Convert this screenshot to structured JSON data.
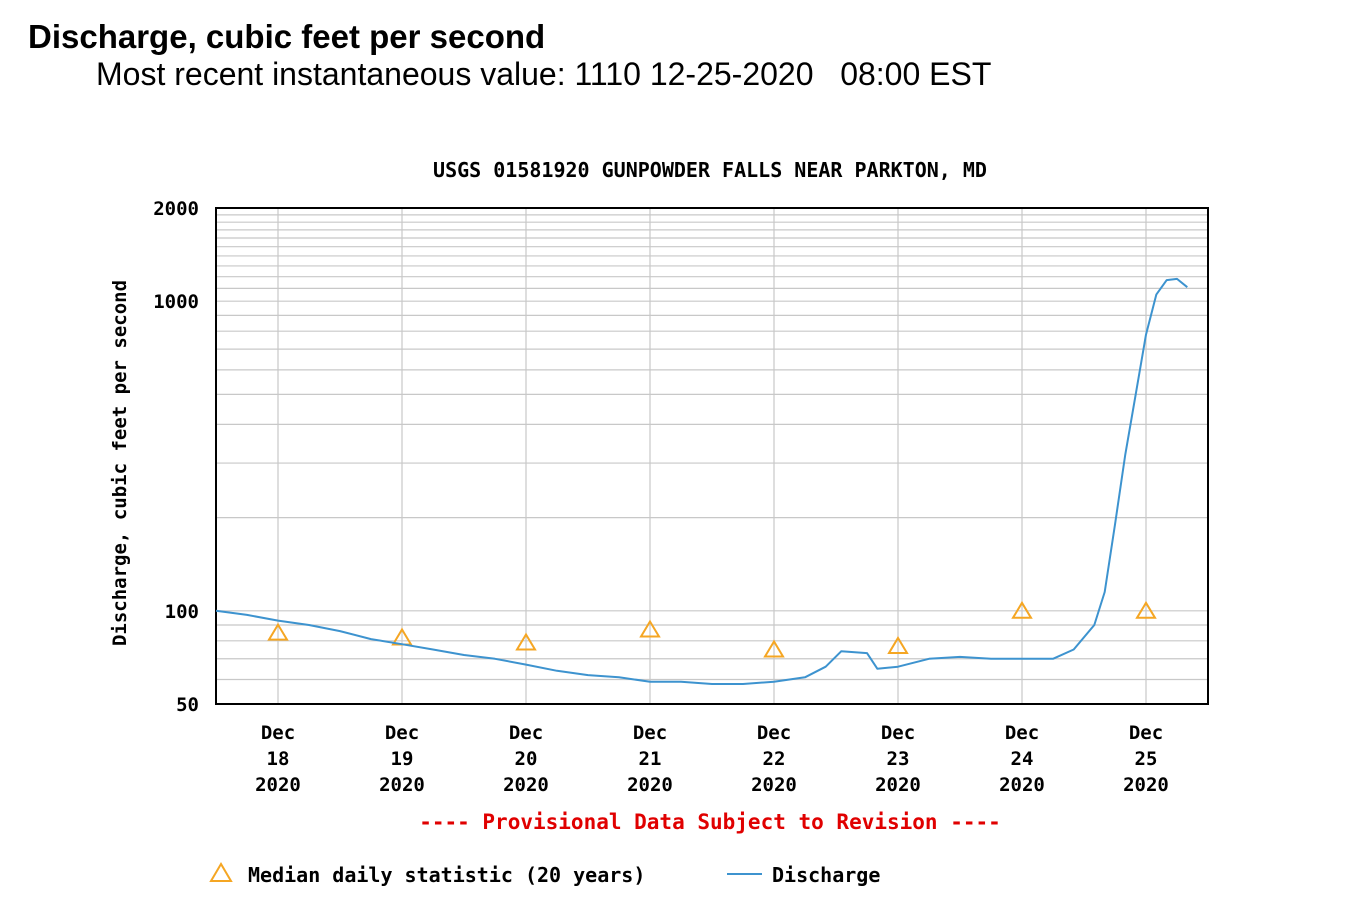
{
  "header": {
    "title": "Discharge, cubic feet per second",
    "recent_label": "Most recent instantaneous value:",
    "recent_value": "1110",
    "recent_date": "12-25-2020",
    "recent_time": "08:00 EST"
  },
  "colors": {
    "discharge_line": "#3d93cf",
    "median_marker": "#f5a623",
    "provisional_text": "#e00000",
    "grid": "#c8c8c8"
  },
  "chart_data": {
    "type": "line",
    "title": "USGS 01581920 GUNPOWDER FALLS NEAR PARKTON, MD",
    "ylabel": "Discharge, cubic feet per second",
    "xlabel": "",
    "yscale": "log",
    "ylim": [
      50,
      2000
    ],
    "xlim": [
      "2020-12-17 12:00",
      "2020-12-25 12:00"
    ],
    "yticks": [
      {
        "value": 50,
        "label": "50"
      },
      {
        "value": 100,
        "label": "100"
      },
      {
        "value": 1000,
        "label": "1000"
      },
      {
        "value": 2000,
        "label": "2000"
      }
    ],
    "xticks": [
      {
        "date": "2020-12-18",
        "lines": [
          "Dec",
          "18",
          "2020"
        ]
      },
      {
        "date": "2020-12-19",
        "lines": [
          "Dec",
          "19",
          "2020"
        ]
      },
      {
        "date": "2020-12-20",
        "lines": [
          "Dec",
          "20",
          "2020"
        ]
      },
      {
        "date": "2020-12-21",
        "lines": [
          "Dec",
          "21",
          "2020"
        ]
      },
      {
        "date": "2020-12-22",
        "lines": [
          "Dec",
          "22",
          "2020"
        ]
      },
      {
        "date": "2020-12-23",
        "lines": [
          "Dec",
          "23",
          "2020"
        ]
      },
      {
        "date": "2020-12-24",
        "lines": [
          "Dec",
          "24",
          "2020"
        ]
      },
      {
        "date": "2020-12-25",
        "lines": [
          "Dec",
          "25",
          "2020"
        ]
      }
    ],
    "grid": true,
    "provisional_note": "---- Provisional Data Subject to Revision ----",
    "legend_position": "bottom",
    "series": [
      {
        "name": "Discharge",
        "style": "line",
        "points": [
          [
            "2020-12-17 12:00",
            100
          ],
          [
            "2020-12-17 18:00",
            97
          ],
          [
            "2020-12-18 00:00",
            93
          ],
          [
            "2020-12-18 06:00",
            90
          ],
          [
            "2020-12-18 12:00",
            86
          ],
          [
            "2020-12-18 18:00",
            81
          ],
          [
            "2020-12-19 00:00",
            78
          ],
          [
            "2020-12-19 06:00",
            75
          ],
          [
            "2020-12-19 12:00",
            72
          ],
          [
            "2020-12-19 18:00",
            70
          ],
          [
            "2020-12-20 00:00",
            67
          ],
          [
            "2020-12-20 06:00",
            64
          ],
          [
            "2020-12-20 12:00",
            62
          ],
          [
            "2020-12-20 18:00",
            61
          ],
          [
            "2020-12-21 00:00",
            59
          ],
          [
            "2020-12-21 06:00",
            59
          ],
          [
            "2020-12-21 12:00",
            58
          ],
          [
            "2020-12-21 18:00",
            58
          ],
          [
            "2020-12-22 00:00",
            59
          ],
          [
            "2020-12-22 06:00",
            61
          ],
          [
            "2020-12-22 10:00",
            66
          ],
          [
            "2020-12-22 13:00",
            74
          ],
          [
            "2020-12-22 18:00",
            73
          ],
          [
            "2020-12-22 20:00",
            65
          ],
          [
            "2020-12-23 00:00",
            66
          ],
          [
            "2020-12-23 06:00",
            70
          ],
          [
            "2020-12-23 12:00",
            71
          ],
          [
            "2020-12-23 18:00",
            70
          ],
          [
            "2020-12-24 00:00",
            70
          ],
          [
            "2020-12-24 06:00",
            70
          ],
          [
            "2020-12-24 10:00",
            75
          ],
          [
            "2020-12-24 14:00",
            90
          ],
          [
            "2020-12-24 16:00",
            115
          ],
          [
            "2020-12-24 18:00",
            190
          ],
          [
            "2020-12-24 20:00",
            320
          ],
          [
            "2020-12-24 22:00",
            500
          ],
          [
            "2020-12-25 00:00",
            780
          ],
          [
            "2020-12-25 02:00",
            1050
          ],
          [
            "2020-12-25 04:00",
            1170
          ],
          [
            "2020-12-25 06:00",
            1180
          ],
          [
            "2020-12-25 08:00",
            1110
          ]
        ]
      },
      {
        "name": "Median daily statistic (20 years)",
        "style": "marker",
        "points": [
          [
            "2020-12-18 00:00",
            85
          ],
          [
            "2020-12-19 00:00",
            82
          ],
          [
            "2020-12-20 00:00",
            79
          ],
          [
            "2020-12-21 00:00",
            87
          ],
          [
            "2020-12-22 00:00",
            75
          ],
          [
            "2020-12-23 00:00",
            77
          ],
          [
            "2020-12-24 00:00",
            100
          ],
          [
            "2020-12-25 00:00",
            100
          ]
        ]
      }
    ],
    "legend": [
      {
        "label": "Median daily statistic (20 years)",
        "kind": "triangle"
      },
      {
        "label": "Discharge",
        "kind": "line"
      }
    ]
  }
}
